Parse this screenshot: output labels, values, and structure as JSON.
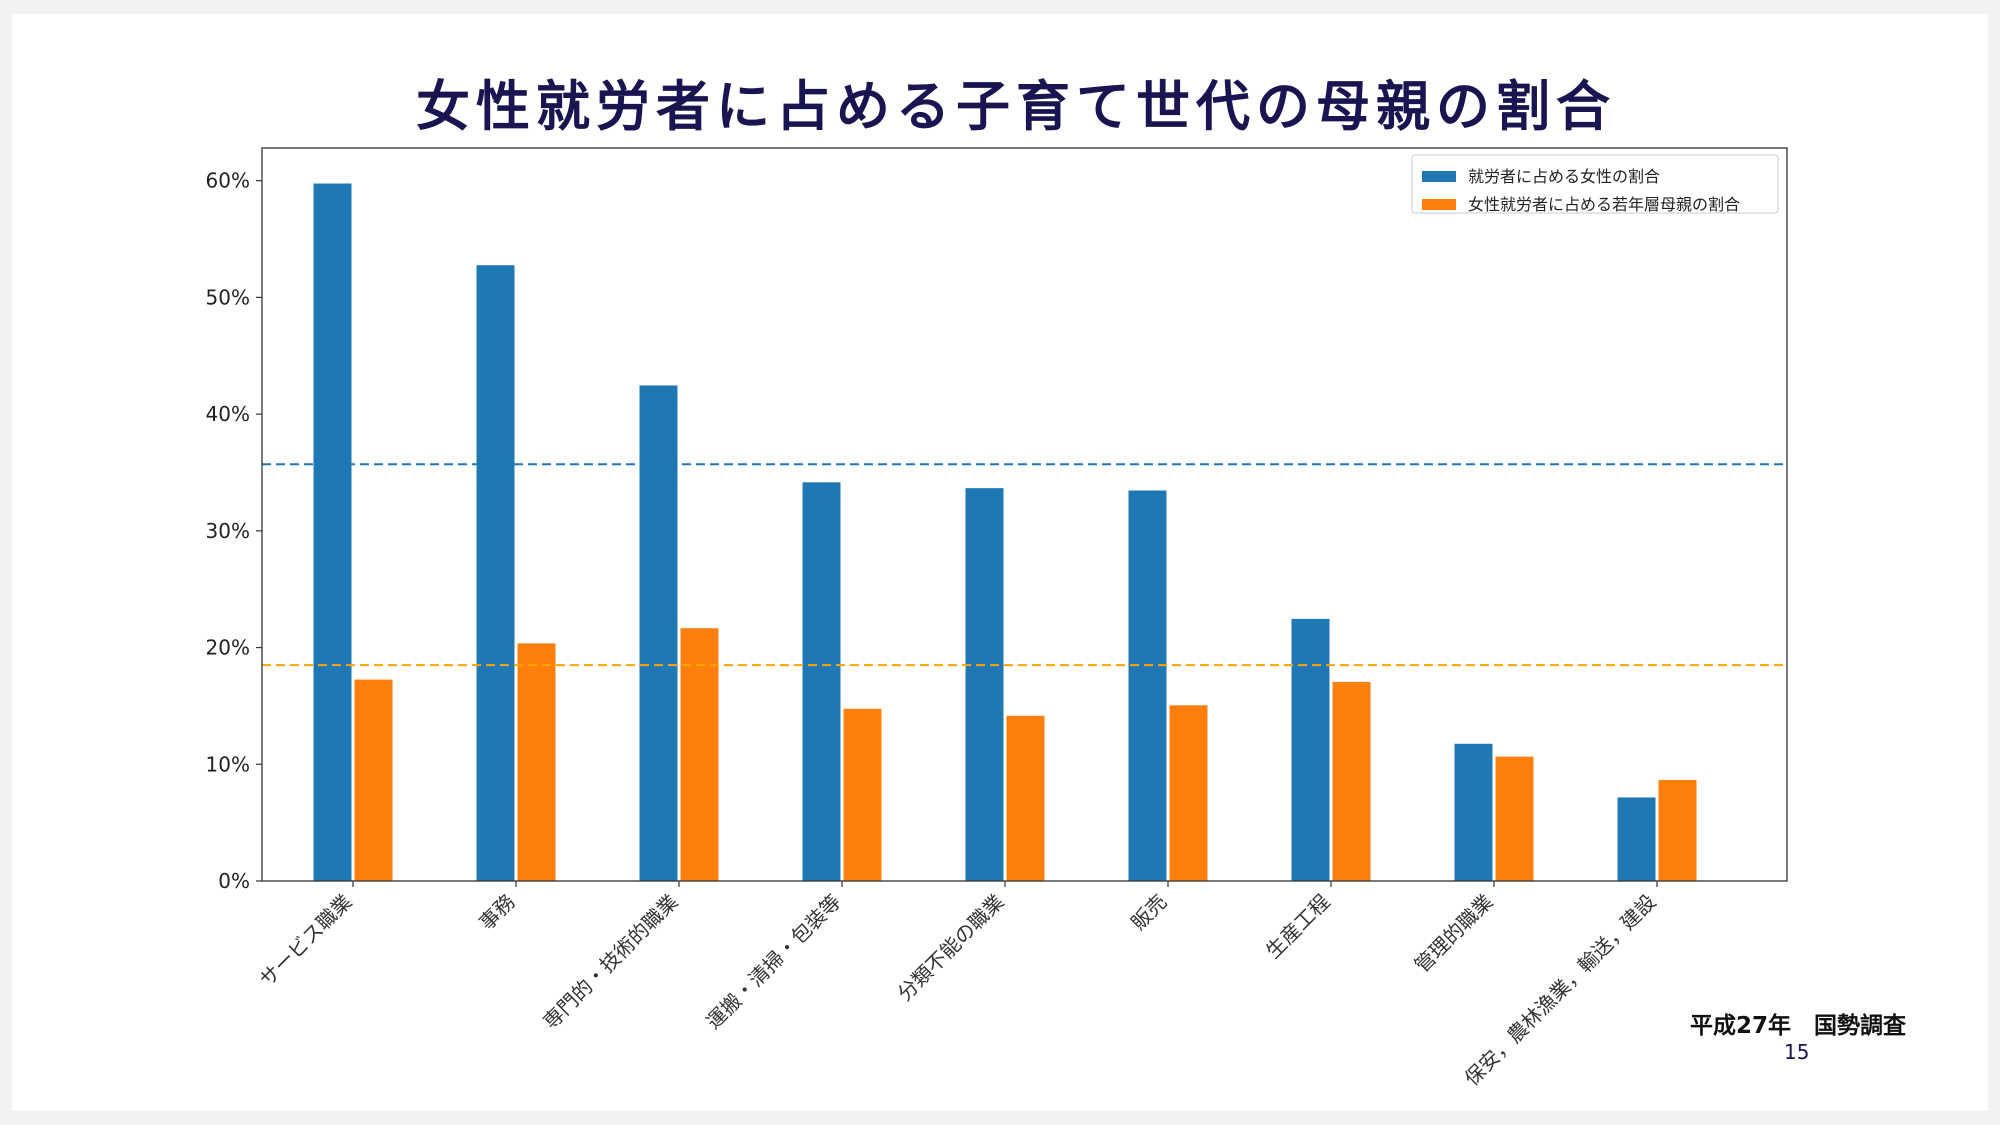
{
  "slide": {
    "title": "女性就労者に占める子育て世代の母親の割合",
    "source": "平成27年　国勢調査",
    "page_number": "15"
  },
  "chart_data": {
    "type": "bar",
    "title": "",
    "xlabel": "",
    "ylabel": "",
    "categories": [
      "サービス職業",
      "事務",
      "専門的・技術的職業",
      "運搬・清掃・包装等",
      "分類不能の職業",
      "販売",
      "生産工程",
      "管理的職業",
      "保安，農林漁業，輸送，建設"
    ],
    "series": [
      {
        "name": "就労者に占める女性の割合",
        "color": "#1f77b4",
        "values": [
          59.8,
          52.8,
          42.5,
          34.2,
          33.7,
          33.5,
          22.5,
          11.8,
          7.2
        ]
      },
      {
        "name": "女性就労者に占める若年層母親の割合",
        "color": "#ff7f0e",
        "values": [
          17.3,
          20.4,
          21.7,
          14.8,
          14.2,
          15.1,
          17.1,
          10.7,
          8.7
        ]
      }
    ],
    "reference_lines": [
      {
        "value": 35.7,
        "color": "#1f77b4",
        "style": "dashed"
      },
      {
        "value": 18.5,
        "color": "#ffa500",
        "style": "dashed"
      }
    ],
    "ylim": [
      0,
      62.8
    ],
    "yticks": [
      0,
      10,
      20,
      30,
      40,
      50,
      60
    ],
    "ytick_labels": [
      "0%",
      "10%",
      "20%",
      "30%",
      "40%",
      "50%",
      "60%"
    ],
    "legend": "top-right",
    "grid": false
  }
}
